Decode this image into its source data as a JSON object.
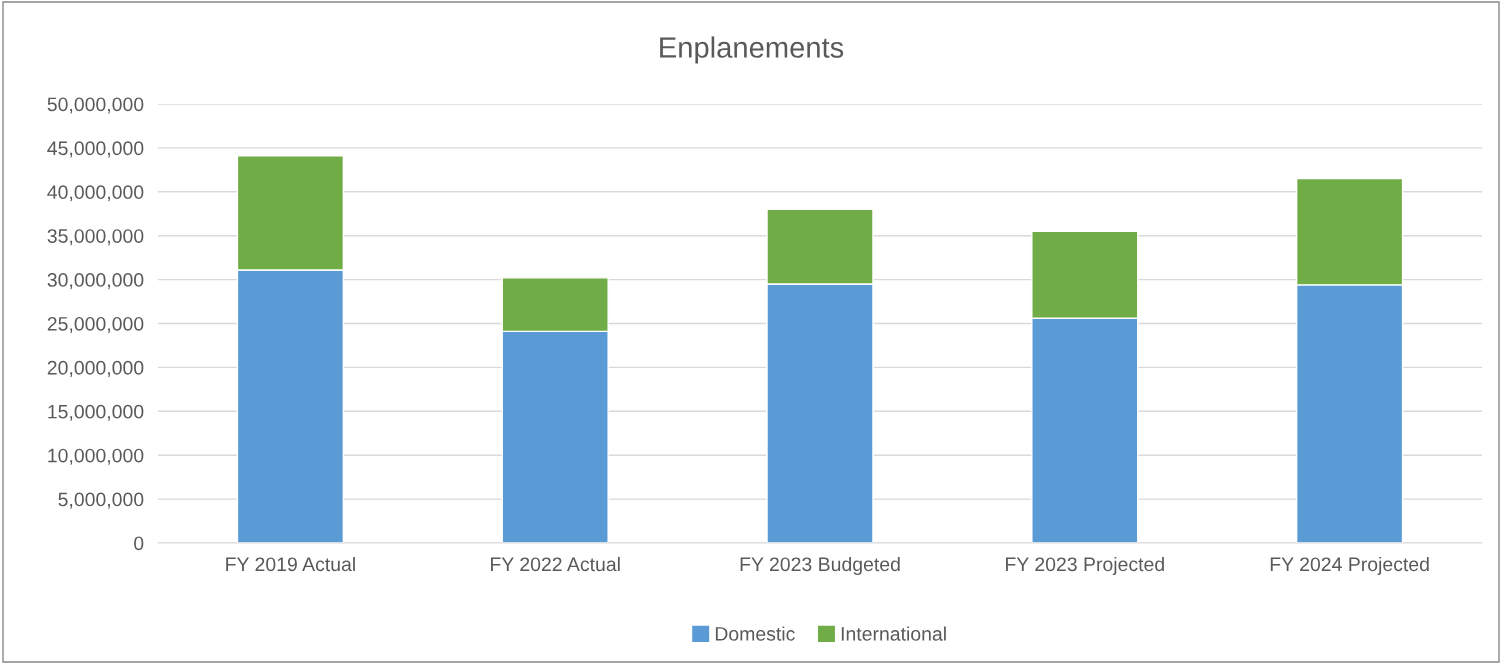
{
  "chart_data": {
    "type": "bar",
    "title": "Enplanements",
    "stacked": true,
    "categories": [
      "FY 2019 Actual",
      "FY 2022 Actual",
      "FY 2023 Budgeted",
      "FY 2023 Projected",
      "FY 2024 Projected"
    ],
    "series": [
      {
        "name": "Domestic",
        "color": "#5b9bd5",
        "values": [
          31100000,
          24100000,
          29500000,
          25600000,
          29400000
        ]
      },
      {
        "name": "International",
        "color": "#70ad47",
        "values": [
          13000000,
          6100000,
          8500000,
          9900000,
          12100000
        ]
      }
    ],
    "ylim": [
      0,
      50000000
    ],
    "yticks": [
      {
        "value": 0,
        "label": "0"
      },
      {
        "value": 5000000,
        "label": "5,000,000"
      },
      {
        "value": 10000000,
        "label": "10,000,000"
      },
      {
        "value": 15000000,
        "label": "15,000,000"
      },
      {
        "value": 20000000,
        "label": "20,000,000"
      },
      {
        "value": 25000000,
        "label": "25,000,000"
      },
      {
        "value": 30000000,
        "label": "30,000,000"
      },
      {
        "value": 35000000,
        "label": "35,000,000"
      },
      {
        "value": 40000000,
        "label": "40,000,000"
      },
      {
        "value": 45000000,
        "label": "45,000,000"
      },
      {
        "value": 50000000,
        "label": "50,000,000"
      }
    ],
    "grid": "y",
    "legend": "bottom"
  }
}
